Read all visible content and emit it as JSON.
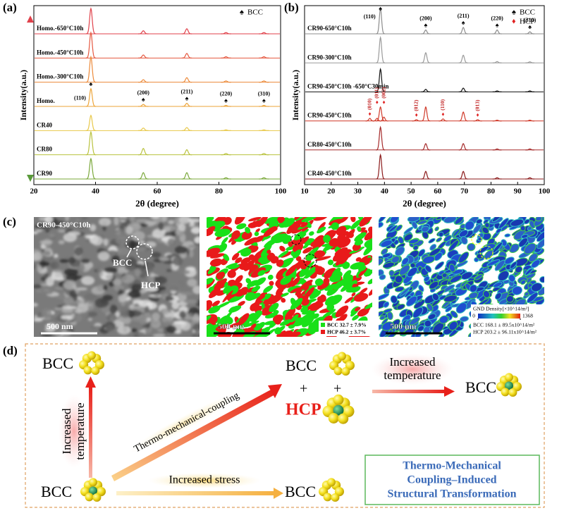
{
  "chart_data": [
    {
      "type": "line",
      "label": "(a)",
      "ylabel": "Intensity(a.u.)",
      "xlabel": "2θ (degree)",
      "xlim": [
        20,
        100
      ],
      "xticks": [
        20,
        40,
        60,
        80,
        100
      ],
      "legend": [
        {
          "marker": "♠",
          "name": "BCC",
          "color": "#000000"
        }
      ],
      "peak_positions": [
        38.5,
        55.5,
        69.6,
        82.3,
        94.6
      ],
      "series": [
        {
          "name": "Homo.-650°C10h",
          "color": "#e0424b",
          "heights": [
            1.0,
            0.12,
            0.2,
            0.05,
            0.05
          ]
        },
        {
          "name": "Homo.-450°C10h",
          "color": "#e5573f",
          "heights": [
            1.0,
            0.12,
            0.18,
            0.05,
            0.05
          ]
        },
        {
          "name": "Homo.-300°C10h",
          "color": "#ec8a3a",
          "heights": [
            1.0,
            0.1,
            0.18,
            0.05,
            0.05
          ]
        },
        {
          "name": "Homo.",
          "color": "#eda53a",
          "heights": [
            0.7,
            0.08,
            0.12,
            0.04,
            0.04
          ],
          "peak_labels": [
            "(110)",
            "(200)",
            "(211)",
            "(220)",
            "(310)"
          ]
        },
        {
          "name": "CR40",
          "color": "#e8c84a",
          "heights": [
            0.6,
            0.1,
            0.12,
            0.03,
            0.03
          ]
        },
        {
          "name": "CR80",
          "color": "#b9c23e",
          "heights": [
            0.9,
            0.25,
            0.2,
            0.05,
            0.05
          ]
        },
        {
          "name": "CR90",
          "color": "#7aa83a",
          "heights": [
            0.8,
            0.25,
            0.25,
            0.05,
            0.05
          ]
        }
      ]
    },
    {
      "type": "line",
      "label": "(b)",
      "ylabel": "Intensity(a.u.)",
      "xlabel": "2θ (degree)",
      "xlim": [
        10,
        100
      ],
      "xticks": [
        10,
        20,
        30,
        40,
        50,
        60,
        70,
        80,
        90,
        100
      ],
      "legend": [
        {
          "marker": "♠",
          "name": "BCC",
          "color": "#000000"
        },
        {
          "marker": "♦",
          "name": "HCP",
          "color": "#e02020"
        }
      ],
      "peak_positions": [
        38.5,
        55.5,
        69.6,
        82.3,
        94.6
      ],
      "series": [
        {
          "name": "CR90-650°C10h",
          "color": "#8c8c8c",
          "heights": [
            1.0,
            0.15,
            0.25,
            0.15,
            0.08
          ],
          "peak_labels": [
            "(110)",
            "(200)",
            "(211)",
            "(220)",
            "(310)"
          ]
        },
        {
          "name": "CR90-300°C10h",
          "color": "#9a9a9a",
          "heights": [
            1.0,
            0.4,
            0.3,
            0.05,
            0.04
          ]
        },
        {
          "name": "CR90-450°C10h -650°C30min",
          "color": "#111111",
          "heights": [
            0.9,
            0.1,
            0.15,
            0.04,
            0.04
          ]
        },
        {
          "name": "CR90-450°C10h",
          "color": "#d03a2a",
          "heights": [
            0.55,
            0.55,
            0.35,
            0.03,
            0.03
          ],
          "hcp": {
            "positions": [
              34.5,
              37.2,
              39.8,
              52.0,
              62.0,
              75.0
            ],
            "heights": [
              0.1,
              0.1,
              0.15,
              0.05,
              0.08,
              0.05
            ],
            "labels": [
              "(010)",
              "(011)",
              "(002)",
              "(012)",
              "(110)",
              "(013)"
            ]
          }
        },
        {
          "name": "CR80-450°C10h",
          "color": "#a52a2a",
          "heights": [
            0.9,
            0.25,
            0.25,
            0.04,
            0.04
          ]
        },
        {
          "name": "CR40-450°C10h",
          "color": "#8b1a1a",
          "heights": [
            0.95,
            0.3,
            0.3,
            0.05,
            0.05
          ]
        }
      ]
    }
  ],
  "panel_c": {
    "label": "(c)",
    "images": [
      {
        "title": "CR90-450°C10h",
        "annotations": [
          "BCC",
          "HCP"
        ],
        "scale_bar": "500 nm"
      },
      {
        "scale_bar": "500 nm",
        "legend": [
          "BCC 32.7 ± 7.9%",
          "HCP 46.2 ± 3.7%"
        ]
      },
      {
        "scale_bar": "500 nm",
        "colorbar_title": "GND Density[×10^14/m²]",
        "colorbar_ticks": [
          0,
          1368
        ],
        "legend": [
          "BCC 168.1 ± 89.5x10^14/m²",
          "HCP 203.2 ± 96.11x10^14/m²"
        ]
      }
    ]
  },
  "panel_d": {
    "label": "(d)",
    "bcc": "BCC",
    "hcp": "HCP",
    "plus": "+",
    "temperature_label": [
      "Increased",
      "temperature"
    ],
    "coupling_label": "Thermo-mechanical-coupling",
    "stress_label": "Increased stress",
    "summary": [
      "Thermo-Mechanical",
      "Coupling–Induced",
      "Structural Transformation"
    ]
  }
}
